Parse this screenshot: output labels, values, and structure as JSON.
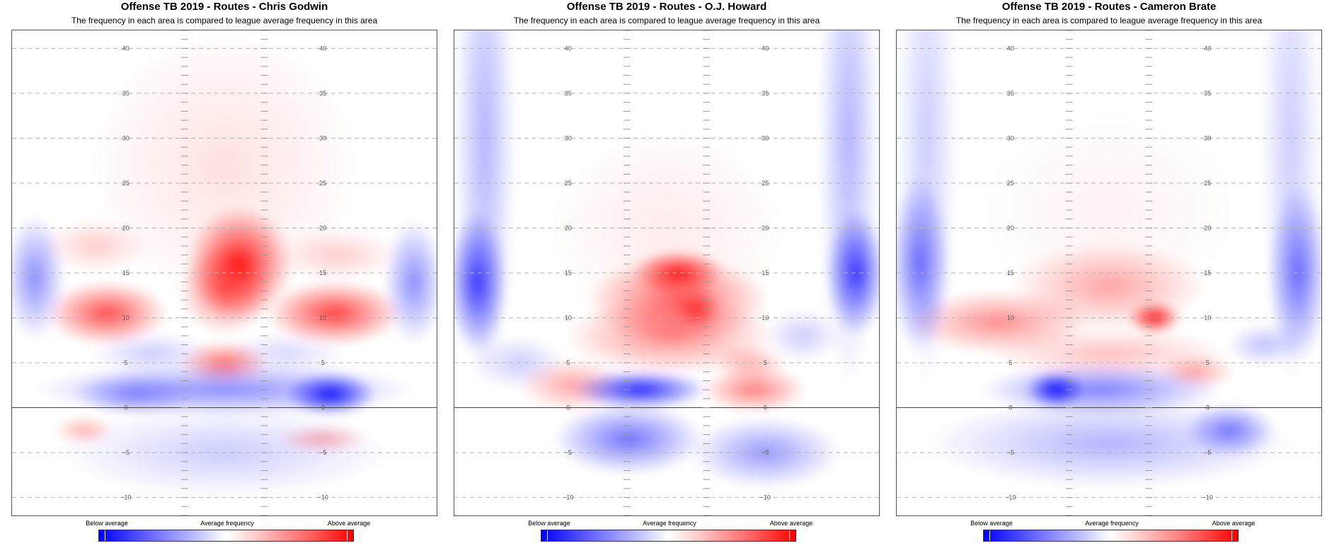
{
  "panels": [
    {
      "title": "Offense TB 2019 - Routes - Chris Godwin",
      "subtitle": "The frequency in each area is compared to league average frequency in this area",
      "blobs": [
        {
          "x": 18,
          "y": 16,
          "sx": 7,
          "sy": 3.2,
          "v": 0.9
        },
        {
          "x": 14,
          "y": 13,
          "sx": 6,
          "sy": 2.5,
          "v": 0.5
        },
        {
          "x": -17,
          "y": 10.5,
          "sx": 8,
          "sy": 1.8,
          "v": 0.7
        },
        {
          "x": 43,
          "y": 10.5,
          "sx": 9,
          "sy": 1.8,
          "v": 0.75
        },
        {
          "x": 14,
          "y": 5,
          "sx": 6,
          "sy": 1.2,
          "v": 0.55
        },
        {
          "x": -20,
          "y": 18,
          "sx": 7,
          "sy": 1.5,
          "v": 0.2
        },
        {
          "x": 44,
          "y": 17,
          "sx": 8,
          "sy": 1.5,
          "v": 0.2
        },
        {
          "x": 14,
          "y": 27,
          "sx": 18,
          "sy": 8,
          "v": 0.12
        },
        {
          "x": 42,
          "y": 1.5,
          "sx": 6,
          "sy": 1.2,
          "v": -0.9
        },
        {
          "x": 14,
          "y": 2,
          "sx": 25,
          "sy": 1.5,
          "v": -0.45
        },
        {
          "x": -10,
          "y": 1.5,
          "sx": 8,
          "sy": 1.2,
          "v": -0.35
        },
        {
          "x": -36,
          "y": 14.5,
          "sx": 4,
          "sy": 3.5,
          "v": -0.45
        },
        {
          "x": 64,
          "y": 14,
          "sx": 4,
          "sy": 3.5,
          "v": -0.45
        },
        {
          "x": 14,
          "y": -5,
          "sx": 22,
          "sy": 2.5,
          "v": -0.2
        },
        {
          "x": -23,
          "y": -2.5,
          "sx": 4,
          "sy": 0.8,
          "v": 0.3
        },
        {
          "x": 40,
          "y": -3.5,
          "sx": 6,
          "sy": 0.8,
          "v": 0.3
        },
        {
          "x": -5,
          "y": 6,
          "sx": 8,
          "sy": 1.2,
          "v": -0.2
        },
        {
          "x": 30,
          "y": 6,
          "sx": 8,
          "sy": 1.2,
          "v": -0.15
        }
      ]
    },
    {
      "title": "Offense TB 2019 - Routes - O.J. Howard",
      "subtitle": "The frequency in each area is compared to league average frequency in this area",
      "blobs": [
        {
          "x": 17,
          "y": 15,
          "sx": 6,
          "sy": 1.3,
          "v": 0.85
        },
        {
          "x": 17,
          "y": 12,
          "sx": 12,
          "sy": 2.5,
          "v": 0.6
        },
        {
          "x": 22,
          "y": 11,
          "sx": 3,
          "sy": 1.2,
          "v": 0.6
        },
        {
          "x": 15,
          "y": 8,
          "sx": 14,
          "sy": 2.2,
          "v": 0.45
        },
        {
          "x": 37,
          "y": 2,
          "sx": 7,
          "sy": 1.3,
          "v": 0.5
        },
        {
          "x": -11,
          "y": 2.5,
          "sx": 7,
          "sy": 1.5,
          "v": 0.35
        },
        {
          "x": 36,
          "y": 5,
          "sx": 5,
          "sy": 1,
          "v": 0.3
        },
        {
          "x": 14,
          "y": 20,
          "sx": 16,
          "sy": 6,
          "v": 0.08
        },
        {
          "x": 7,
          "y": 2,
          "sx": 9,
          "sy": 1.1,
          "v": -0.85
        },
        {
          "x": 4,
          "y": -3.5,
          "sx": 10,
          "sy": 2,
          "v": -0.55
        },
        {
          "x": -36,
          "y": 14,
          "sx": 4,
          "sy": 4,
          "v": -0.75
        },
        {
          "x": 64,
          "y": 15,
          "sx": 4,
          "sy": 3.5,
          "v": -0.75
        },
        {
          "x": -34,
          "y": 30,
          "sx": 4,
          "sy": 14,
          "v": -0.3
        },
        {
          "x": 62,
          "y": 30,
          "sx": 4,
          "sy": 14,
          "v": -0.3
        },
        {
          "x": 40,
          "y": -5,
          "sx": 10,
          "sy": 2,
          "v": -0.4
        },
        {
          "x": -25,
          "y": 5,
          "sx": 6,
          "sy": 1.5,
          "v": -0.2
        },
        {
          "x": 50,
          "y": 8,
          "sx": 5,
          "sy": 1.5,
          "v": -0.2
        }
      ]
    },
    {
      "title": "Offense TB 2019 - Routes - Cameron Brate",
      "subtitle": "The frequency in each area is compared to league average frequency in this area",
      "blobs": [
        {
          "x": 26,
          "y": 10,
          "sx": 3.5,
          "sy": 0.9,
          "v": 0.9
        },
        {
          "x": -15,
          "y": 9.5,
          "sx": 12,
          "sy": 1.8,
          "v": 0.45
        },
        {
          "x": 14,
          "y": 13.5,
          "sx": 13,
          "sy": 2.5,
          "v": 0.35
        },
        {
          "x": 37,
          "y": 4,
          "sx": 5,
          "sy": 1,
          "v": 0.35
        },
        {
          "x": 14,
          "y": 6,
          "sx": 16,
          "sy": 1.5,
          "v": 0.25
        },
        {
          "x": 14,
          "y": 22,
          "sx": 18,
          "sy": 6,
          "v": 0.05
        },
        {
          "x": 0,
          "y": 2,
          "sx": 4,
          "sy": 1,
          "v": -0.9
        },
        {
          "x": 12,
          "y": 2,
          "sx": 16,
          "sy": 1.5,
          "v": -0.5
        },
        {
          "x": -36,
          "y": 16,
          "sx": 4,
          "sy": 5,
          "v": -0.55
        },
        {
          "x": 64,
          "y": 15,
          "sx": 4,
          "sy": 5,
          "v": -0.55
        },
        {
          "x": 46,
          "y": -2.5,
          "sx": 6,
          "sy": 1.5,
          "v": -0.5
        },
        {
          "x": 14,
          "y": -4,
          "sx": 24,
          "sy": 2.5,
          "v": -0.3
        },
        {
          "x": -34,
          "y": 30,
          "sx": 4,
          "sy": 14,
          "v": -0.2
        },
        {
          "x": 62,
          "y": 30,
          "sx": 4,
          "sy": 14,
          "v": -0.2
        },
        {
          "x": 55,
          "y": 7,
          "sx": 5,
          "sy": 1.2,
          "v": -0.25
        }
      ]
    }
  ],
  "legend": {
    "below": "Below average",
    "average": "Average frequency",
    "above": "Above average"
  },
  "colors": {
    "below": "#0000ff",
    "average": "#ffffff",
    "above": "#ff0000"
  },
  "chart_data": [
    {
      "type": "heatmap",
      "title": "Offense TB 2019 - Routes - Chris Godwin",
      "subtitle": "The frequency in each area is compared to league average frequency in this area",
      "ylim": [
        -12,
        42
      ],
      "y_ticks": [
        -10,
        -5,
        0,
        5,
        10,
        15,
        20,
        25,
        30,
        35,
        40
      ],
      "y_tick_labels": [
        "−10",
        "−5",
        "0",
        "5",
        "10",
        "15",
        "20",
        "25",
        "30",
        "35",
        "40"
      ],
      "grid": true,
      "legend": [
        "Below average",
        "Average frequency",
        "Above average"
      ]
    },
    {
      "type": "heatmap",
      "title": "Offense TB 2019 - Routes - O.J. Howard",
      "subtitle": "The frequency in each area is compared to league average frequency in this area",
      "ylim": [
        -12,
        42
      ],
      "y_ticks": [
        -10,
        -5,
        0,
        5,
        10,
        15,
        20,
        25,
        30,
        35,
        40
      ],
      "y_tick_labels": [
        "−10",
        "−5",
        "0",
        "5",
        "10",
        "15",
        "20",
        "25",
        "30",
        "35",
        "40"
      ],
      "grid": true,
      "legend": [
        "Below average",
        "Average frequency",
        "Above average"
      ]
    },
    {
      "type": "heatmap",
      "title": "Offense TB 2019 - Routes - Cameron Brate",
      "subtitle": "The frequency in each area is compared to league average frequency in this area",
      "ylim": [
        -12,
        42
      ],
      "y_ticks": [
        -10,
        -5,
        0,
        5,
        10,
        15,
        20,
        25,
        30,
        35,
        40
      ],
      "y_tick_labels": [
        "−10",
        "−5",
        "0",
        "5",
        "10",
        "15",
        "20",
        "25",
        "30",
        "35",
        "40"
      ],
      "grid": true,
      "legend": [
        "Below average",
        "Average frequency",
        "Above average"
      ]
    }
  ]
}
